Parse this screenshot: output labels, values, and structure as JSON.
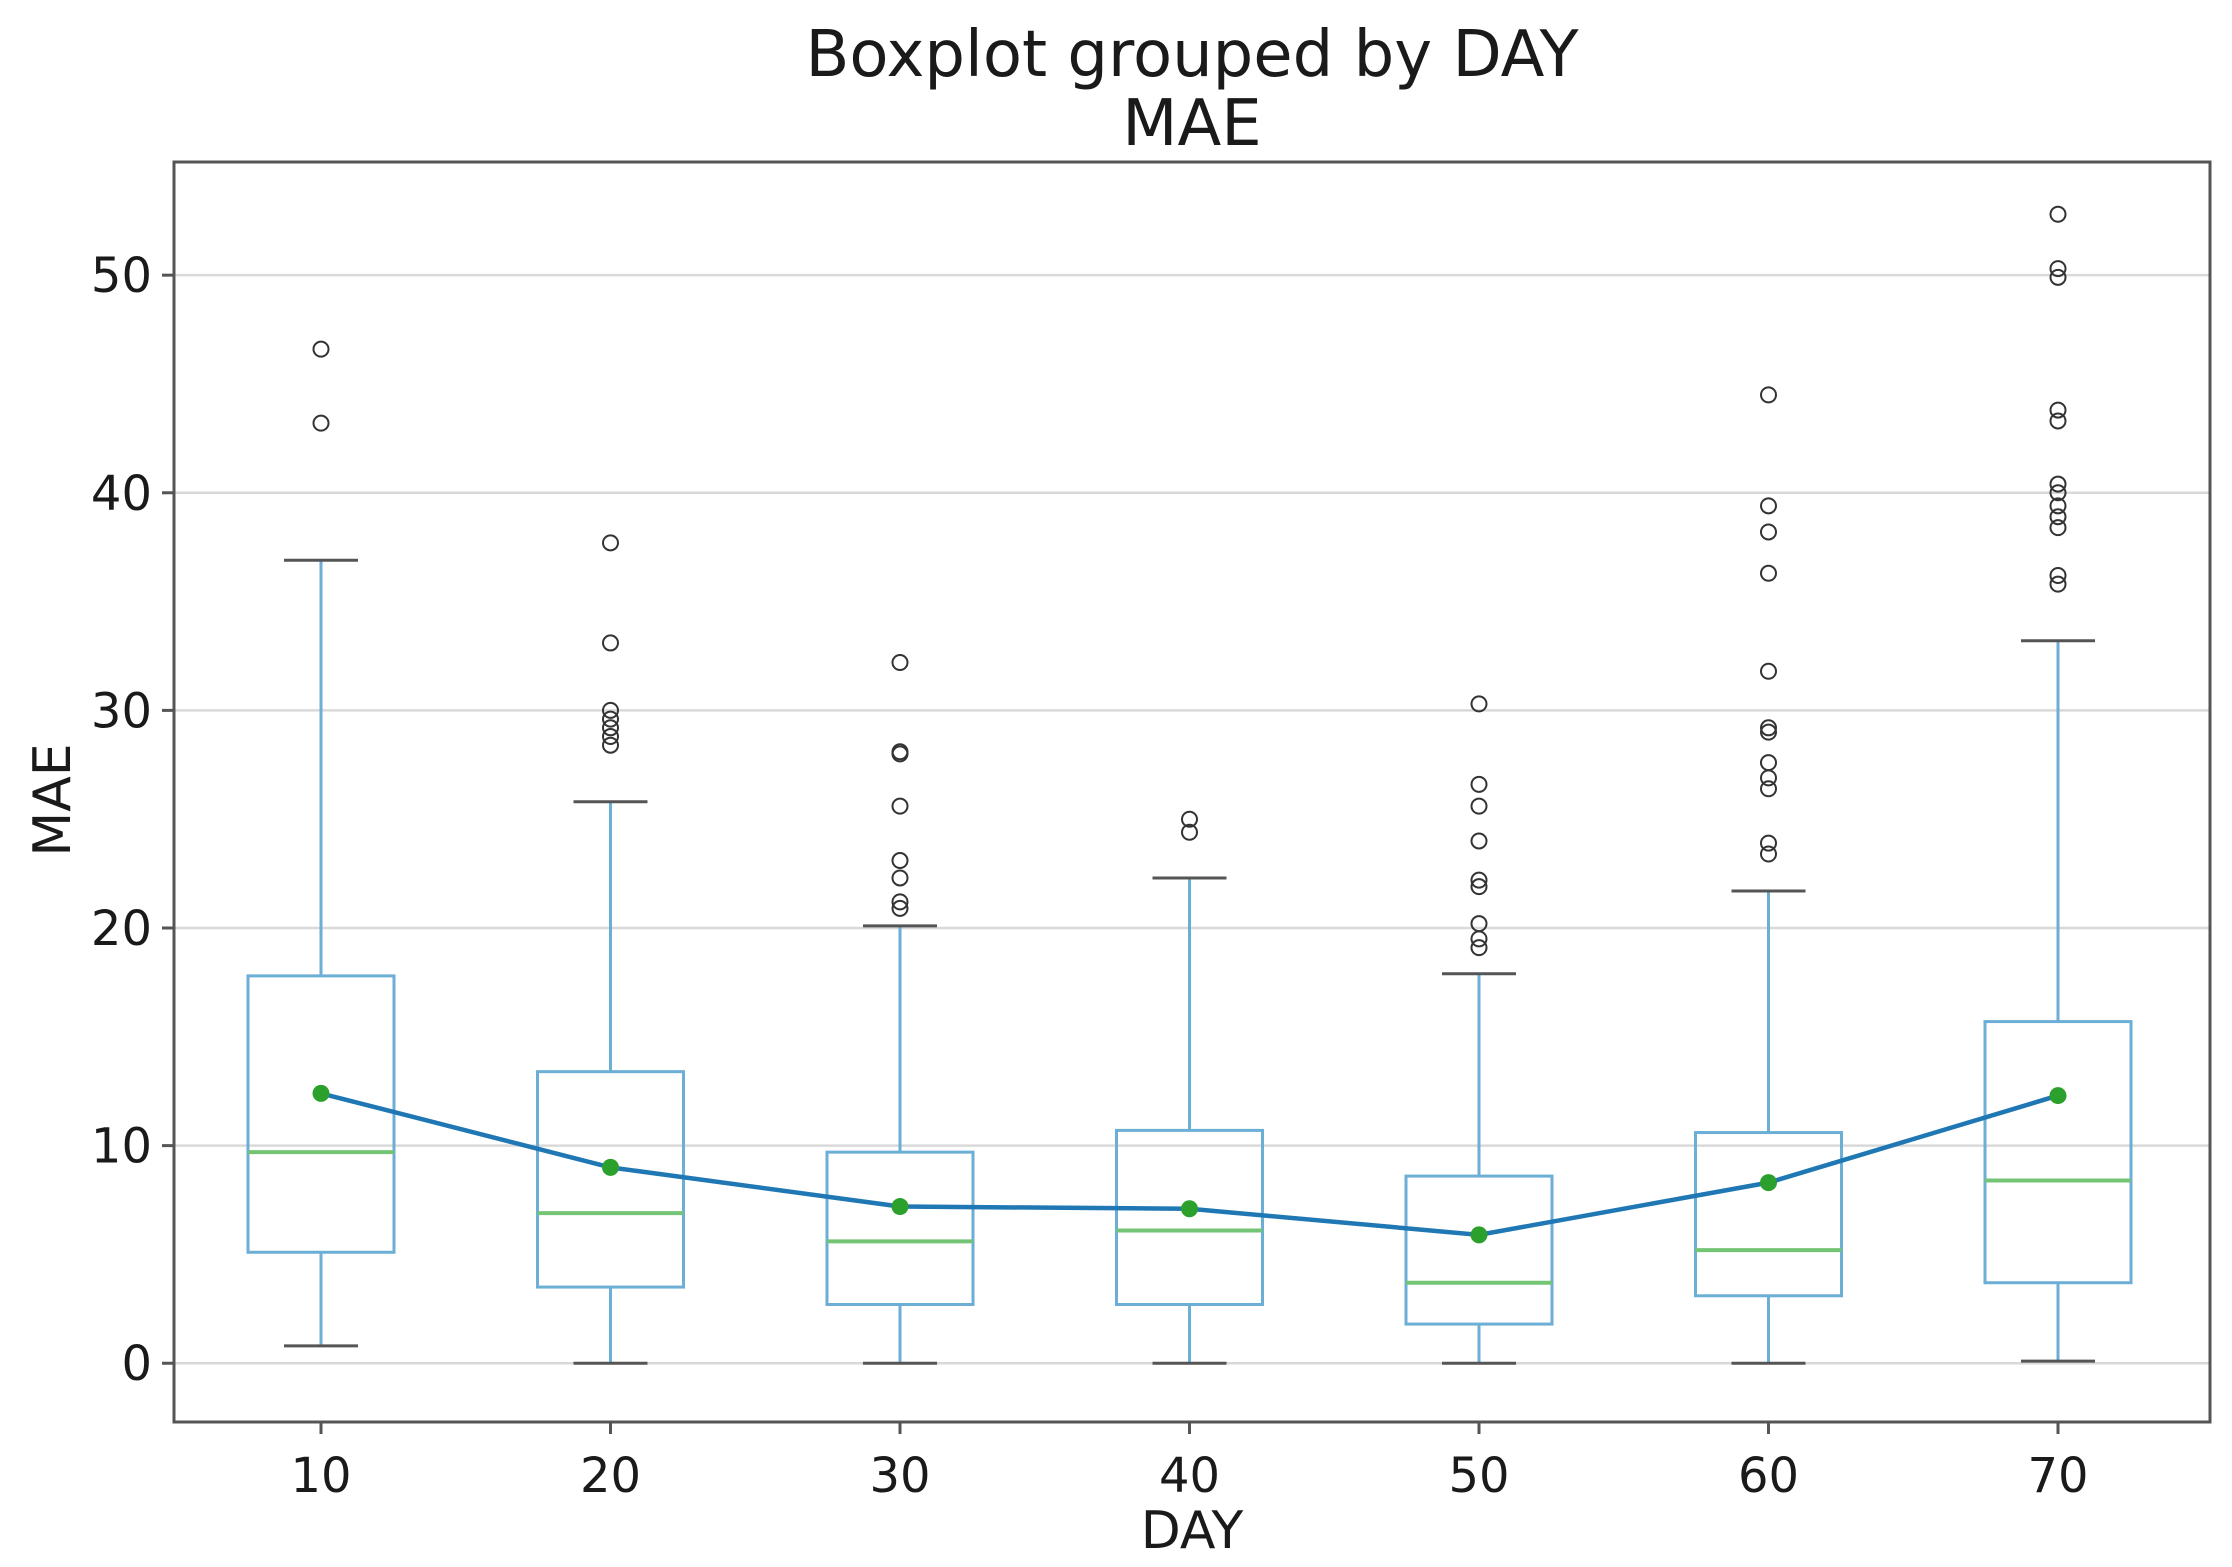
{
  "chart_data": {
    "type": "box",
    "title": "Boxplot grouped by DAY",
    "subtitle": "MAE",
    "xlabel": "DAY",
    "ylabel": "MAE",
    "ylim": [
      -2.7,
      55.2
    ],
    "yticks": [
      0,
      10,
      20,
      30,
      40,
      50
    ],
    "grid": "horizontal",
    "categories": [
      "10",
      "20",
      "30",
      "40",
      "50",
      "60",
      "70"
    ],
    "boxes": [
      {
        "whisker_low": 0.8,
        "q1": 5.1,
        "median": 9.7,
        "q3": 17.8,
        "whisker_high": 36.9,
        "mean": 12.4,
        "outliers": [
          43.2,
          46.6
        ]
      },
      {
        "whisker_low": 0.0,
        "q1": 3.5,
        "median": 6.9,
        "q3": 13.4,
        "whisker_high": 25.8,
        "mean": 9.0,
        "outliers": [
          28.4,
          28.8,
          29.2,
          29.6,
          30.0,
          33.1,
          37.7
        ]
      },
      {
        "whisker_low": 0.0,
        "q1": 2.7,
        "median": 5.6,
        "q3": 9.7,
        "whisker_high": 20.1,
        "mean": 7.2,
        "outliers": [
          20.9,
          21.2,
          22.3,
          23.1,
          25.6,
          28.0,
          28.1,
          32.2
        ]
      },
      {
        "whisker_low": 0.0,
        "q1": 2.7,
        "median": 6.1,
        "q3": 10.7,
        "whisker_high": 22.3,
        "mean": 7.1,
        "outliers": [
          24.4,
          25.0
        ]
      },
      {
        "whisker_low": 0.0,
        "q1": 1.8,
        "median": 3.7,
        "q3": 8.6,
        "whisker_high": 17.9,
        "mean": 5.9,
        "outliers": [
          19.1,
          19.5,
          20.2,
          21.9,
          22.2,
          24.0,
          25.6,
          26.6,
          30.3
        ]
      },
      {
        "whisker_low": 0.0,
        "q1": 3.1,
        "median": 5.2,
        "q3": 10.6,
        "whisker_high": 21.7,
        "mean": 8.3,
        "outliers": [
          23.4,
          23.9,
          26.4,
          26.9,
          27.6,
          29.0,
          29.2,
          31.8,
          36.3,
          38.2,
          39.4,
          44.5
        ]
      },
      {
        "whisker_low": 0.1,
        "q1": 3.7,
        "median": 8.4,
        "q3": 15.7,
        "whisker_high": 33.2,
        "mean": 12.3,
        "outliers": [
          35.8,
          36.2,
          38.4,
          38.9,
          39.4,
          40.0,
          40.4,
          43.3,
          43.8,
          49.9,
          50.3,
          52.8
        ]
      }
    ],
    "mean_line": {
      "color": "#1f77b4",
      "marker_color": "#2ca02c"
    },
    "colors": {
      "box": "#6baed6",
      "median": "#74c476",
      "outlier": "#333333",
      "grid": "#d9d9d9",
      "frame": "#555555"
    }
  }
}
